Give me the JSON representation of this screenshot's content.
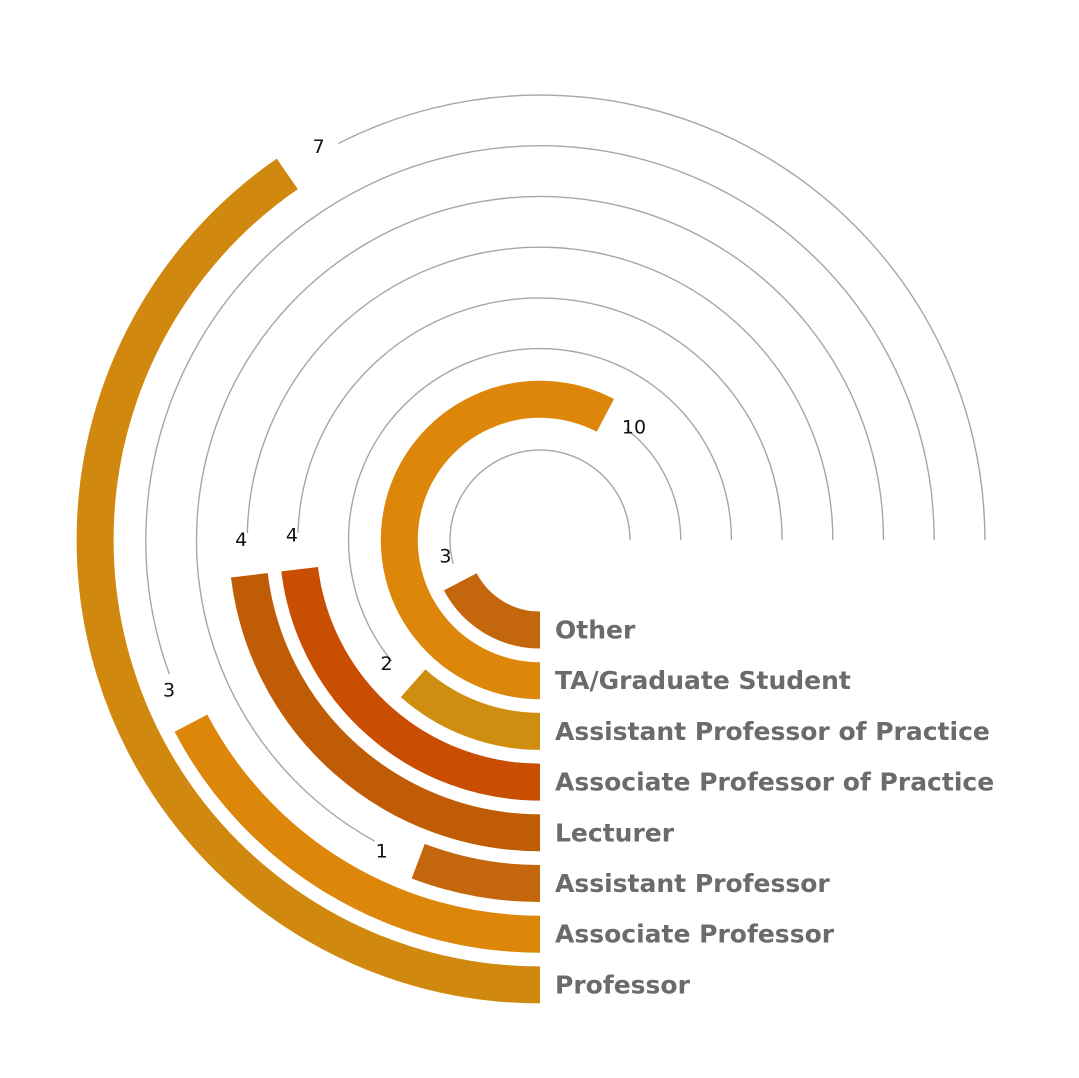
{
  "chart_data": {
    "type": "radial-bar",
    "max": 13,
    "categories": [
      "Other",
      "TA/Graduate Student",
      "Assistant Professor of Practice",
      "Associate Professor of Practice",
      "Lecturer",
      "Assistant Professor",
      "Associate Professor",
      "Professor"
    ],
    "values": [
      3,
      10,
      2,
      4,
      4,
      1,
      3,
      7
    ],
    "value_labels": [
      "3",
      "10",
      "2",
      "4",
      "4",
      "1",
      "3",
      "7"
    ],
    "colors": [
      "#c4660c",
      "#dc860a",
      "#d08e10",
      "#c94e02",
      "#bf5c05",
      "#c4660c",
      "#dc860a",
      "#d0880e"
    ]
  }
}
